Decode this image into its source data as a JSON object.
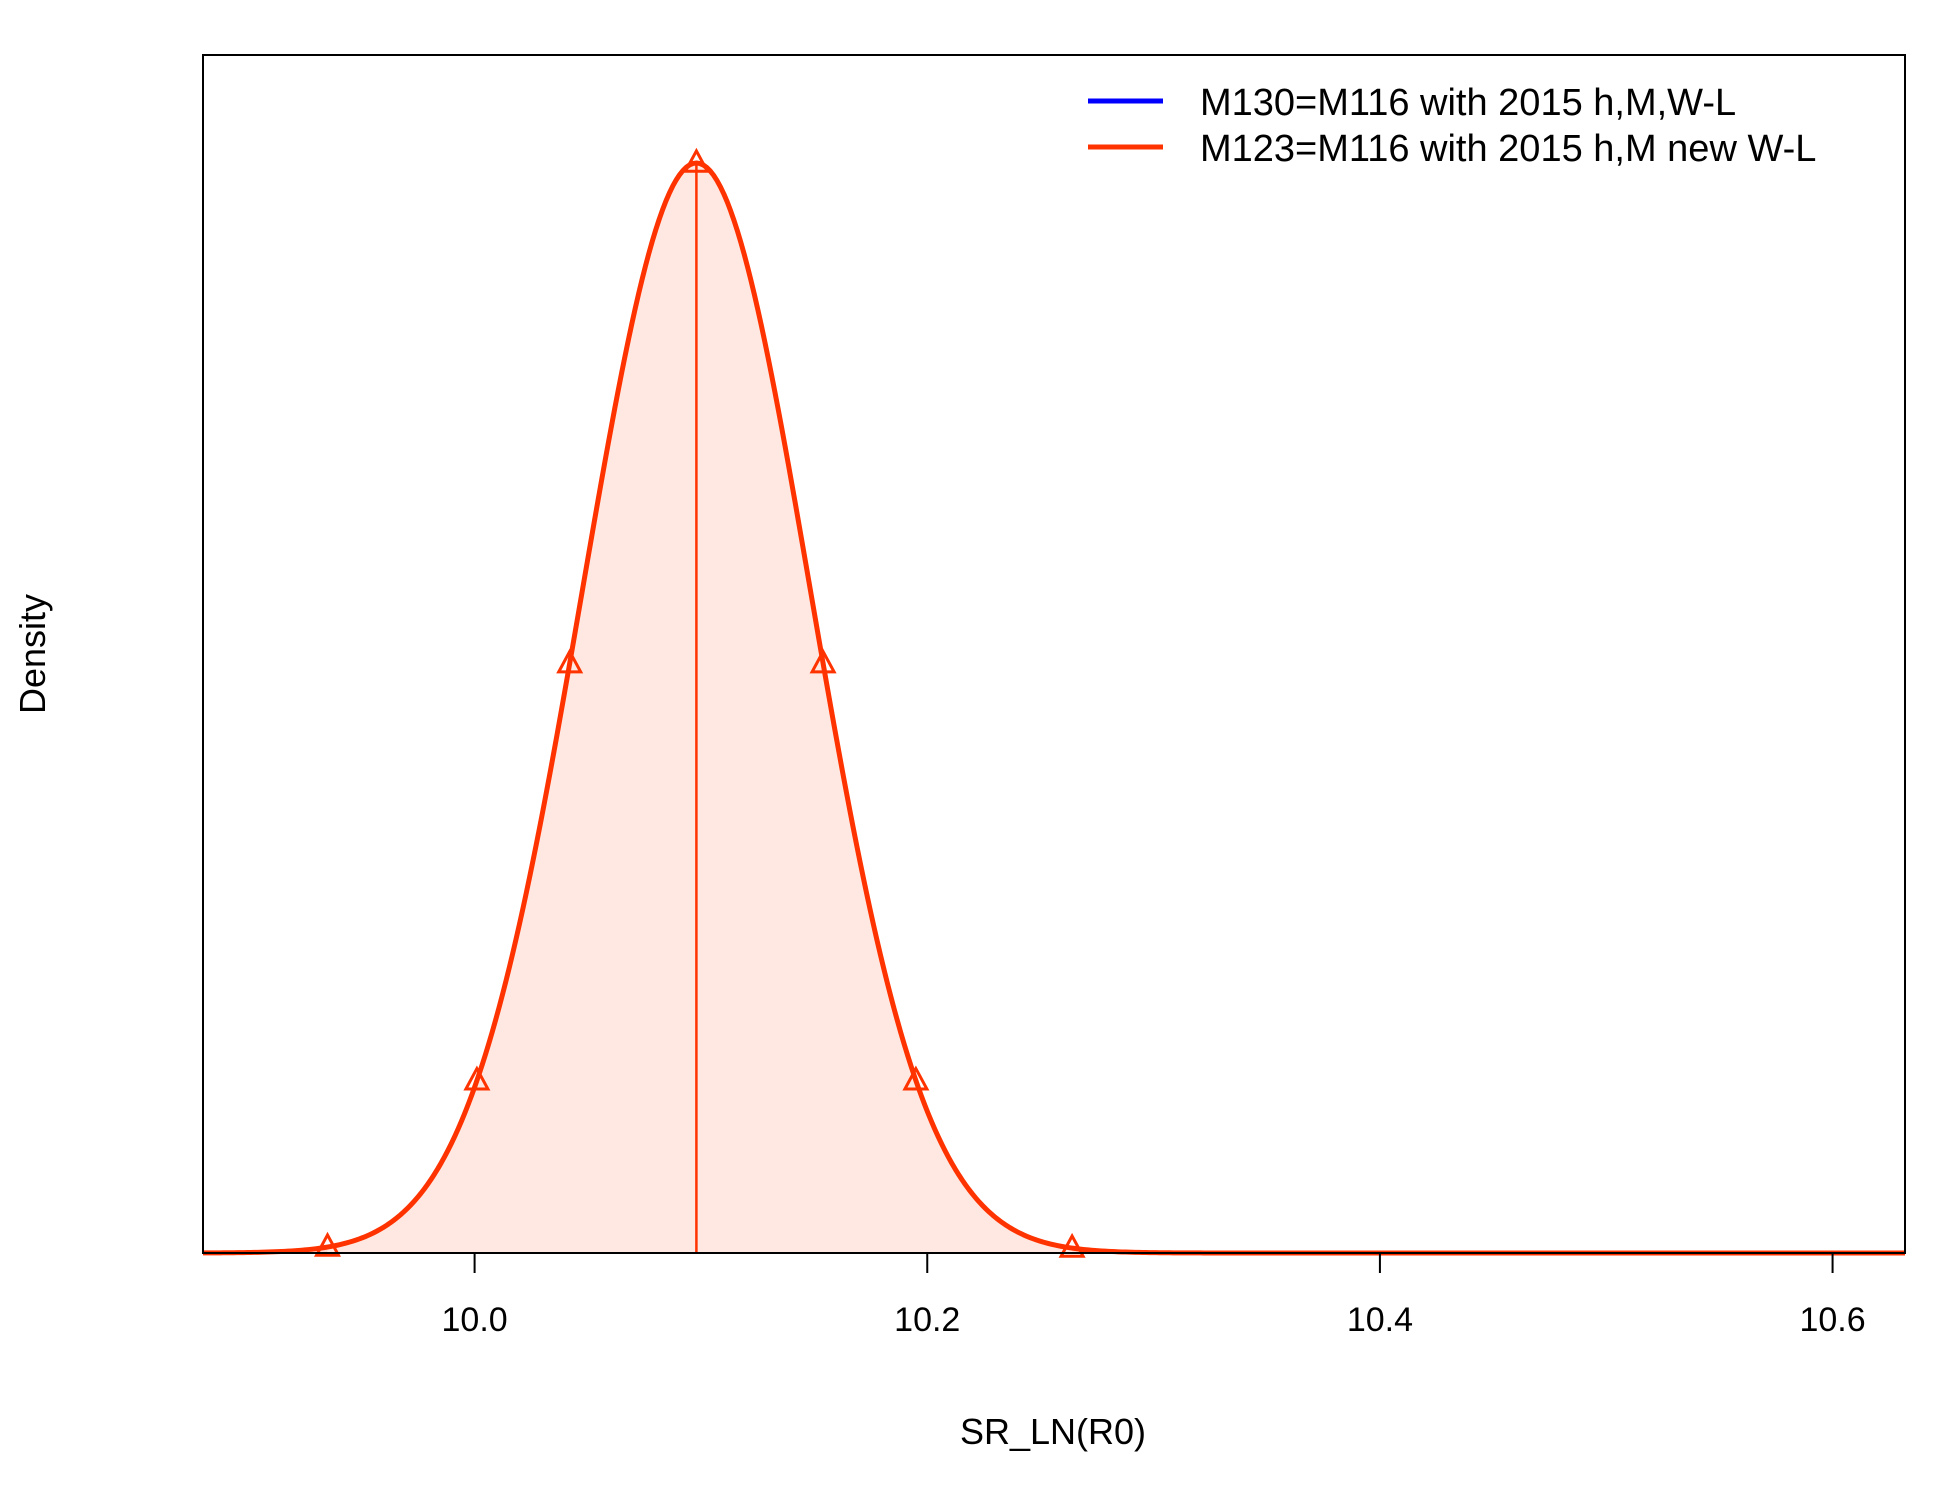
{
  "chart_data": {
    "type": "line",
    "title": "",
    "xlabel": "SR_LN(R0)",
    "ylabel": "Density",
    "xlim": [
      9.88,
      10.632
    ],
    "x_ticks": [
      10.0,
      10.2,
      10.4,
      10.6
    ],
    "x_tick_labels": [
      "10.0",
      "10.2",
      "10.4",
      "10.6"
    ],
    "y_axis_labels_shown": false,
    "grid": false,
    "legend_position": "top-right",
    "series": [
      {
        "name": "M130=M116 with 2015 h,M,W-L",
        "color": "#0000ff",
        "distribution": "normal",
        "mean": 10.098,
        "sd": 0.0505,
        "visible_curve": false
      },
      {
        "name": "M123=M116 with 2015 h,M new W-L",
        "color": "#ff3300",
        "distribution": "normal",
        "mean": 10.098,
        "sd": 0.0505,
        "visible_curve": true,
        "shade_interval": [
          9.935,
          10.264
        ],
        "quantile_markers_x": [
          9.935,
          10.001,
          10.042,
          10.098,
          10.154,
          10.195,
          10.264
        ]
      }
    ],
    "colors": {
      "fill_inner": "#ffe8e2",
      "fill_tails": "#ffd6ce",
      "median_line": "#ff3300"
    }
  }
}
